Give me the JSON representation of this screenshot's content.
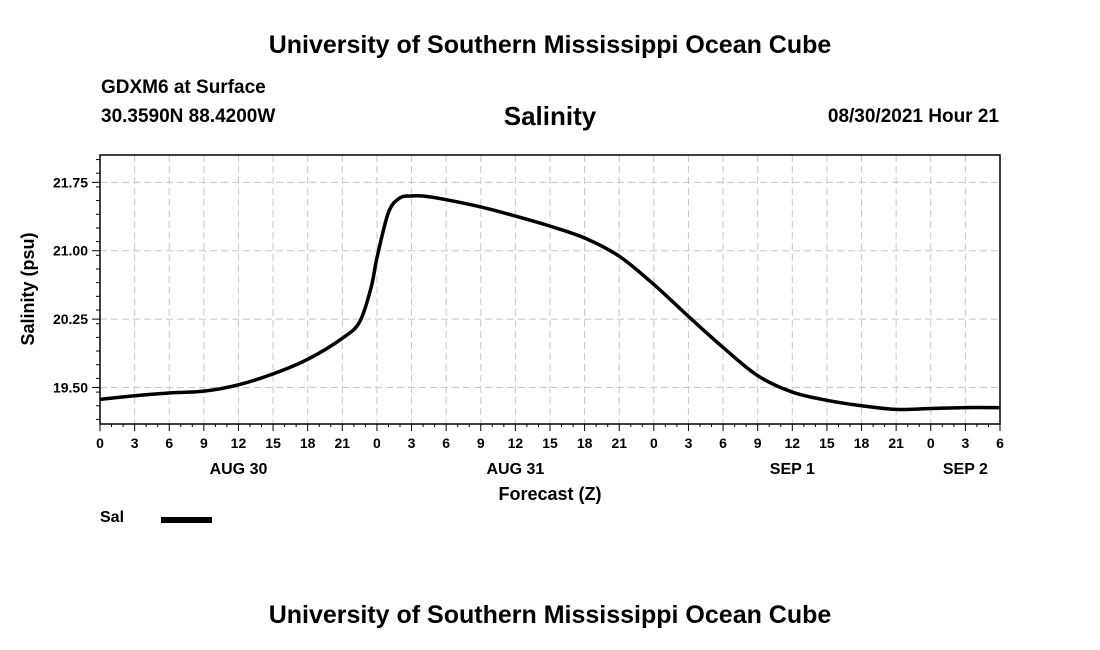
{
  "header": {
    "title": "University of Southern Mississippi Ocean Cube",
    "station": "GDXM6 at Surface",
    "coords": "30.3590N  88.4200W",
    "variable": "Salinity",
    "datetime": "08/30/2021 Hour 21"
  },
  "footer": {
    "title": "University of Southern Mississippi Ocean Cube"
  },
  "legend": {
    "label": "Sal"
  },
  "chart_data": {
    "type": "line",
    "title": "Salinity",
    "xlabel": "Forecast (Z)",
    "ylabel": "Salinity (psu)",
    "xlim": [
      0,
      78
    ],
    "ylim": [
      19.1,
      22.05
    ],
    "yticks": [
      19.5,
      20.25,
      21.0,
      21.75
    ],
    "ytick_labels": [
      "19.50",
      "20.25",
      "21.00",
      "21.75"
    ],
    "xticks": [
      0,
      3,
      6,
      9,
      12,
      15,
      18,
      21,
      24,
      27,
      30,
      33,
      36,
      39,
      42,
      45,
      48,
      51,
      54,
      57,
      60,
      63,
      66,
      69,
      72,
      75,
      78
    ],
    "xtick_labels": [
      "0",
      "3",
      "6",
      "9",
      "12",
      "15",
      "18",
      "21",
      "0",
      "3",
      "6",
      "9",
      "12",
      "15",
      "18",
      "21",
      "0",
      "3",
      "6",
      "9",
      "12",
      "15",
      "18",
      "21",
      "0",
      "3",
      "6"
    ],
    "date_labels": [
      {
        "x": 12,
        "label": "AUG 30"
      },
      {
        "x": 36,
        "label": "AUG 31"
      },
      {
        "x": 60,
        "label": "SEP 1"
      },
      {
        "x": 75,
        "label": "SEP 2"
      }
    ],
    "grid": true,
    "series": [
      {
        "name": "Sal",
        "color": "#000000",
        "x": [
          0,
          3,
          6,
          9,
          12,
          15,
          18,
          21,
          22.5,
          23.5,
          24,
          25,
          26,
          27,
          28,
          30,
          33,
          36,
          39,
          42,
          45,
          48,
          51,
          54,
          57,
          60,
          63,
          66,
          69,
          72,
          75,
          78
        ],
        "y": [
          19.37,
          19.41,
          19.44,
          19.46,
          19.53,
          19.65,
          19.81,
          20.04,
          20.22,
          20.6,
          20.92,
          21.42,
          21.58,
          21.6,
          21.6,
          21.56,
          21.48,
          21.38,
          21.27,
          21.14,
          20.94,
          20.63,
          20.28,
          19.94,
          19.63,
          19.45,
          19.36,
          19.3,
          19.26,
          19.27,
          19.28,
          19.28
        ]
      }
    ]
  }
}
